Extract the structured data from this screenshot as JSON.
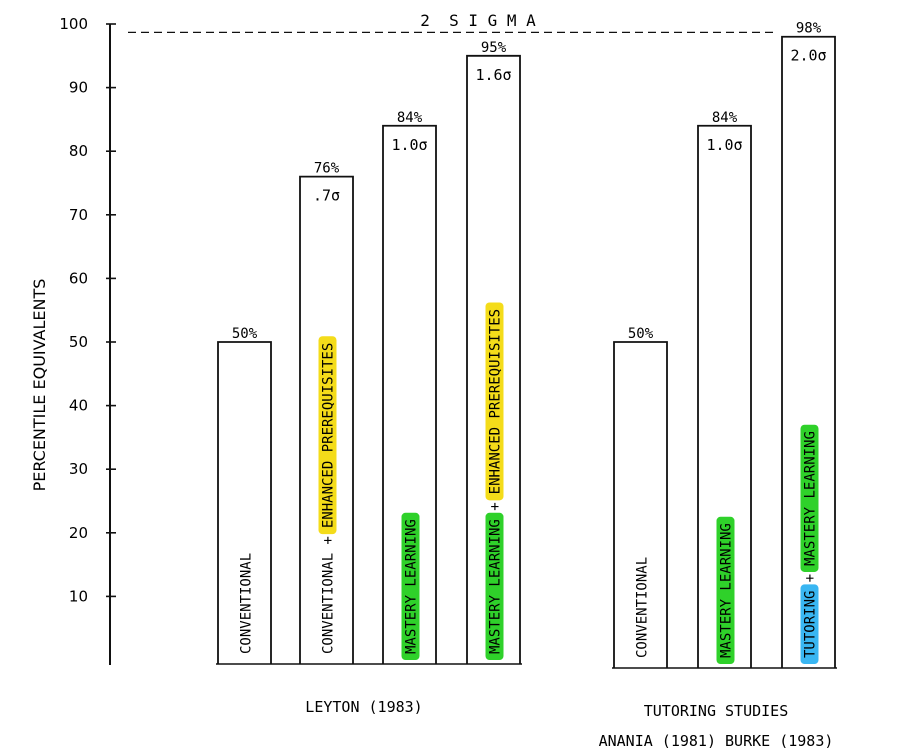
{
  "chart_data": {
    "type": "bar",
    "ylabel": "PERCENTILE EQUIVALENTS",
    "ylim": [
      0,
      100
    ],
    "yticks": [
      10,
      20,
      30,
      40,
      50,
      60,
      70,
      80,
      90,
      100
    ],
    "reference_line": {
      "value": 99,
      "label": "2  S I G M A",
      "style": "dashed"
    },
    "groups": [
      {
        "label": "LEYTON (1983)",
        "bars": [
          {
            "value": 50,
            "value_label": "50%",
            "sigma_label": "",
            "segments": [
              {
                "text": "CONVENTIONAL",
                "highlight": ""
              }
            ]
          },
          {
            "value": 76,
            "value_label": "76%",
            "sigma_label": ".7σ",
            "segments": [
              {
                "text": "CONVENTIONAL",
                "highlight": ""
              },
              {
                "text": "+",
                "highlight": ""
              },
              {
                "text": "ENHANCED PREREQUISITES",
                "highlight": "#f4dc1a"
              }
            ]
          },
          {
            "value": 84,
            "value_label": "84%",
            "sigma_label": "1.0σ",
            "segments": [
              {
                "text": "MASTERY LEARNING",
                "highlight": "#2fd12a"
              }
            ]
          },
          {
            "value": 95,
            "value_label": "95%",
            "sigma_label": "1.6σ",
            "segments": [
              {
                "text": "MASTERY LEARNING",
                "highlight": "#2fd12a"
              },
              {
                "text": "+",
                "highlight": ""
              },
              {
                "text": "ENHANCED PREREQUISITES",
                "highlight": "#f4dc1a"
              }
            ]
          }
        ]
      },
      {
        "label": "TUTORING STUDIES",
        "sublabel": "ANANIA (1981) BURKE (1983)",
        "bars": [
          {
            "value": 50,
            "value_label": "50%",
            "sigma_label": "",
            "segments": [
              {
                "text": "CONVENTIONAL",
                "highlight": ""
              }
            ]
          },
          {
            "value": 84,
            "value_label": "84%",
            "sigma_label": "1.0σ",
            "segments": [
              {
                "text": "MASTERY LEARNING",
                "highlight": "#2fd12a"
              }
            ]
          },
          {
            "value": 98,
            "value_label": "98%",
            "sigma_label": "2.0σ",
            "segments": [
              {
                "text": "TUTORING",
                "highlight": "#39b6f2"
              },
              {
                "text": "+",
                "highlight": ""
              },
              {
                "text": "MASTERY LEARNING",
                "highlight": "#2fd12a"
              }
            ]
          }
        ]
      }
    ]
  }
}
